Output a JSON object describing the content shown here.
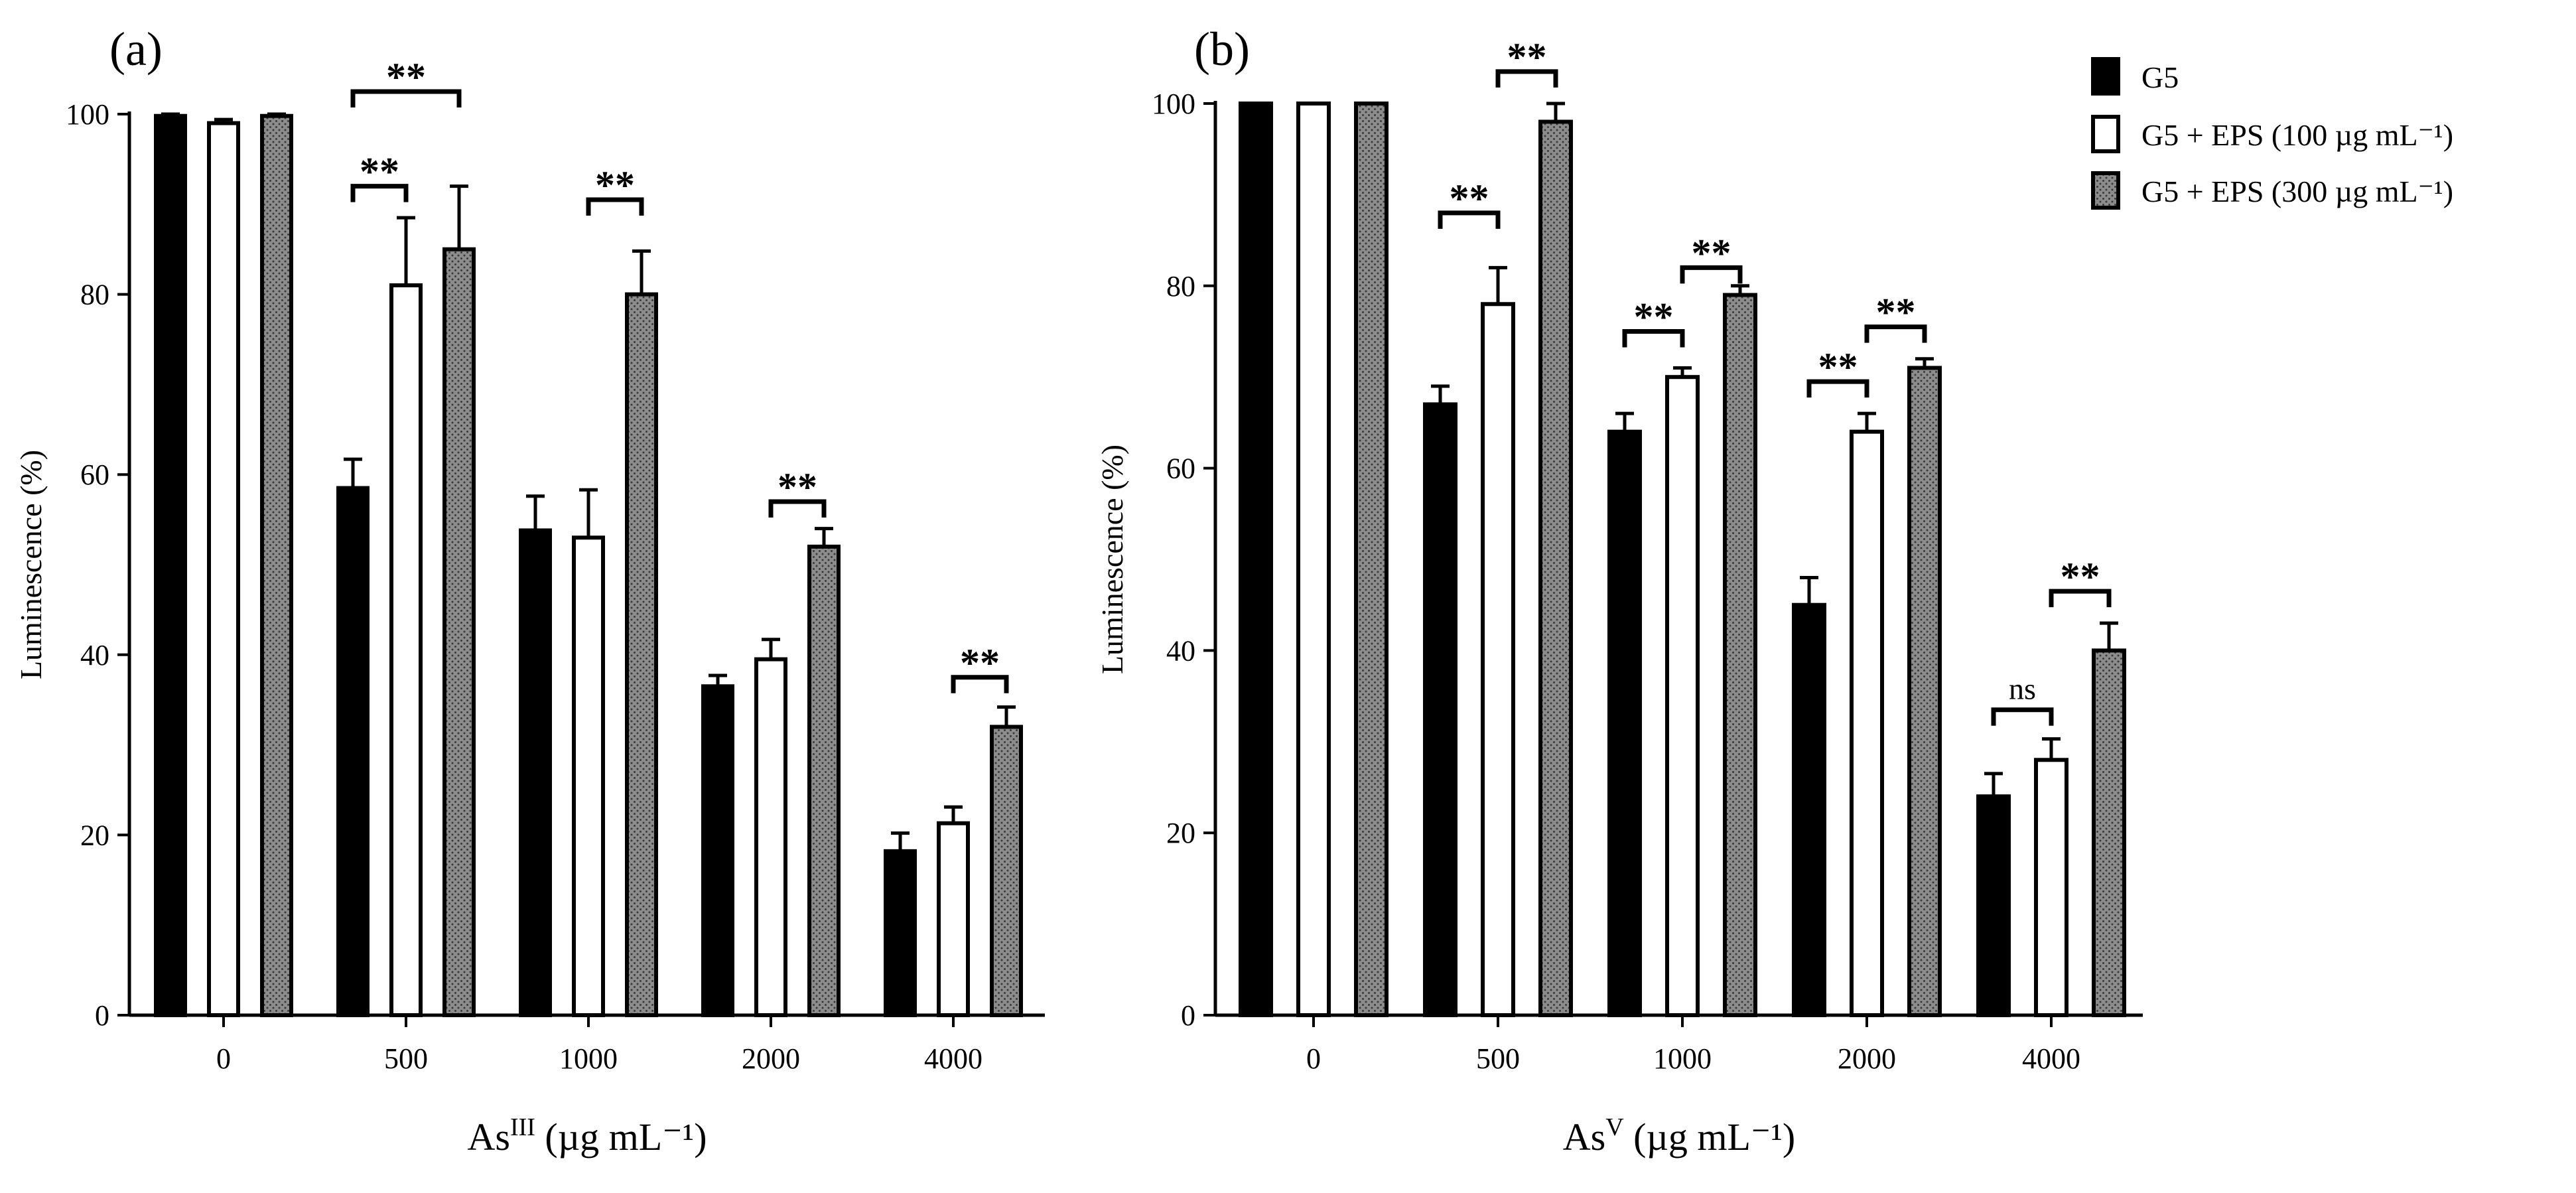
{
  "legend": [
    {
      "label": "G5",
      "style": "black"
    },
    {
      "label": "G5 + EPS (100 µg mL⁻¹)",
      "style": "white"
    },
    {
      "label": "G5 + EPS (300 µg mL⁻¹)",
      "style": "dotted"
    }
  ],
  "colors": {
    "black": "#000000",
    "white": "#ffffff",
    "dotted_base": "#8c8c8c",
    "dot": "#333333"
  },
  "chart_data": [
    {
      "type": "bar",
      "panel_label": "(a)",
      "ylabel": "Luminescence (%)",
      "xlabel": {
        "base": "As",
        "sup": "III",
        "rest": " (µg mL⁻¹)"
      },
      "categories": [
        "0",
        "500",
        "1000",
        "2000",
        "4000"
      ],
      "ylim": [
        0,
        100
      ],
      "yticks": [
        "0",
        "20",
        "40",
        "60",
        "80",
        "100"
      ],
      "series": [
        {
          "name": "G5",
          "values": [
            99.8,
            58.5,
            53.8,
            36.5,
            18.2
          ],
          "errors": [
            0.2,
            3.2,
            3.8,
            1.2,
            2.0
          ]
        },
        {
          "name": "G5 + EPS (100 µg mL⁻¹)",
          "values": [
            99.0,
            81.0,
            53.0,
            39.5,
            21.3
          ],
          "errors": [
            0.4,
            7.5,
            5.3,
            2.2,
            1.8
          ]
        },
        {
          "name": "G5 + EPS (300 µg mL⁻¹)",
          "values": [
            99.8,
            85.0,
            80.0,
            52.0,
            32.0
          ],
          "errors": [
            0.2,
            7.0,
            4.8,
            2.0,
            2.2
          ]
        }
      ],
      "significance": [
        {
          "category": 1,
          "from": 0,
          "to": 1,
          "y": 92,
          "text": "**"
        },
        {
          "category": 1,
          "from": 0,
          "to": 2,
          "y": 102.5,
          "text": "**"
        },
        {
          "category": 2,
          "from": 1,
          "to": 2,
          "y": 90.5,
          "text": "**"
        },
        {
          "category": 3,
          "from": 1,
          "to": 2,
          "y": 57,
          "text": "**"
        },
        {
          "category": 4,
          "from": 1,
          "to": 2,
          "y": 37.5,
          "text": "**"
        }
      ]
    },
    {
      "type": "bar",
      "panel_label": "(b)",
      "ylabel": "Luminescence (%)",
      "xlabel": {
        "base": "As",
        "sup": "V",
        "rest": " (µg mL⁻¹)"
      },
      "categories": [
        "0",
        "500",
        "1000",
        "2000",
        "4000"
      ],
      "ylim": [
        0,
        100
      ],
      "yticks": [
        "0",
        "20",
        "40",
        "60",
        "80",
        "100"
      ],
      "series": [
        {
          "name": "G5",
          "values": [
            100,
            67,
            64,
            45,
            24
          ],
          "errors": [
            0,
            2.0,
            2.0,
            3.0,
            2.5
          ]
        },
        {
          "name": "G5 + EPS (100 µg mL⁻¹)",
          "values": [
            100,
            78,
            70,
            64,
            28
          ],
          "errors": [
            0,
            4.0,
            1.0,
            2.0,
            2.3
          ]
        },
        {
          "name": "G5 + EPS (300 µg mL⁻¹)",
          "values": [
            100,
            98,
            79,
            71,
            40
          ],
          "errors": [
            0,
            2.0,
            1.0,
            1.0,
            3.0
          ]
        }
      ],
      "significance": [
        {
          "category": 1,
          "from": 0,
          "to": 1,
          "y": 88,
          "text": "**"
        },
        {
          "category": 1,
          "from": 1,
          "to": 2,
          "y": 103.5,
          "text": "**"
        },
        {
          "category": 2,
          "from": 0,
          "to": 1,
          "y": 75,
          "text": "**"
        },
        {
          "category": 2,
          "from": 1,
          "to": 2,
          "y": 82,
          "text": "**"
        },
        {
          "category": 3,
          "from": 0,
          "to": 1,
          "y": 69.5,
          "text": "**"
        },
        {
          "category": 3,
          "from": 1,
          "to": 2,
          "y": 75.5,
          "text": "**"
        },
        {
          "category": 4,
          "from": 0,
          "to": 1,
          "y": 33.5,
          "text": "ns"
        },
        {
          "category": 4,
          "from": 1,
          "to": 2,
          "y": 46.5,
          "text": "**"
        }
      ]
    }
  ]
}
